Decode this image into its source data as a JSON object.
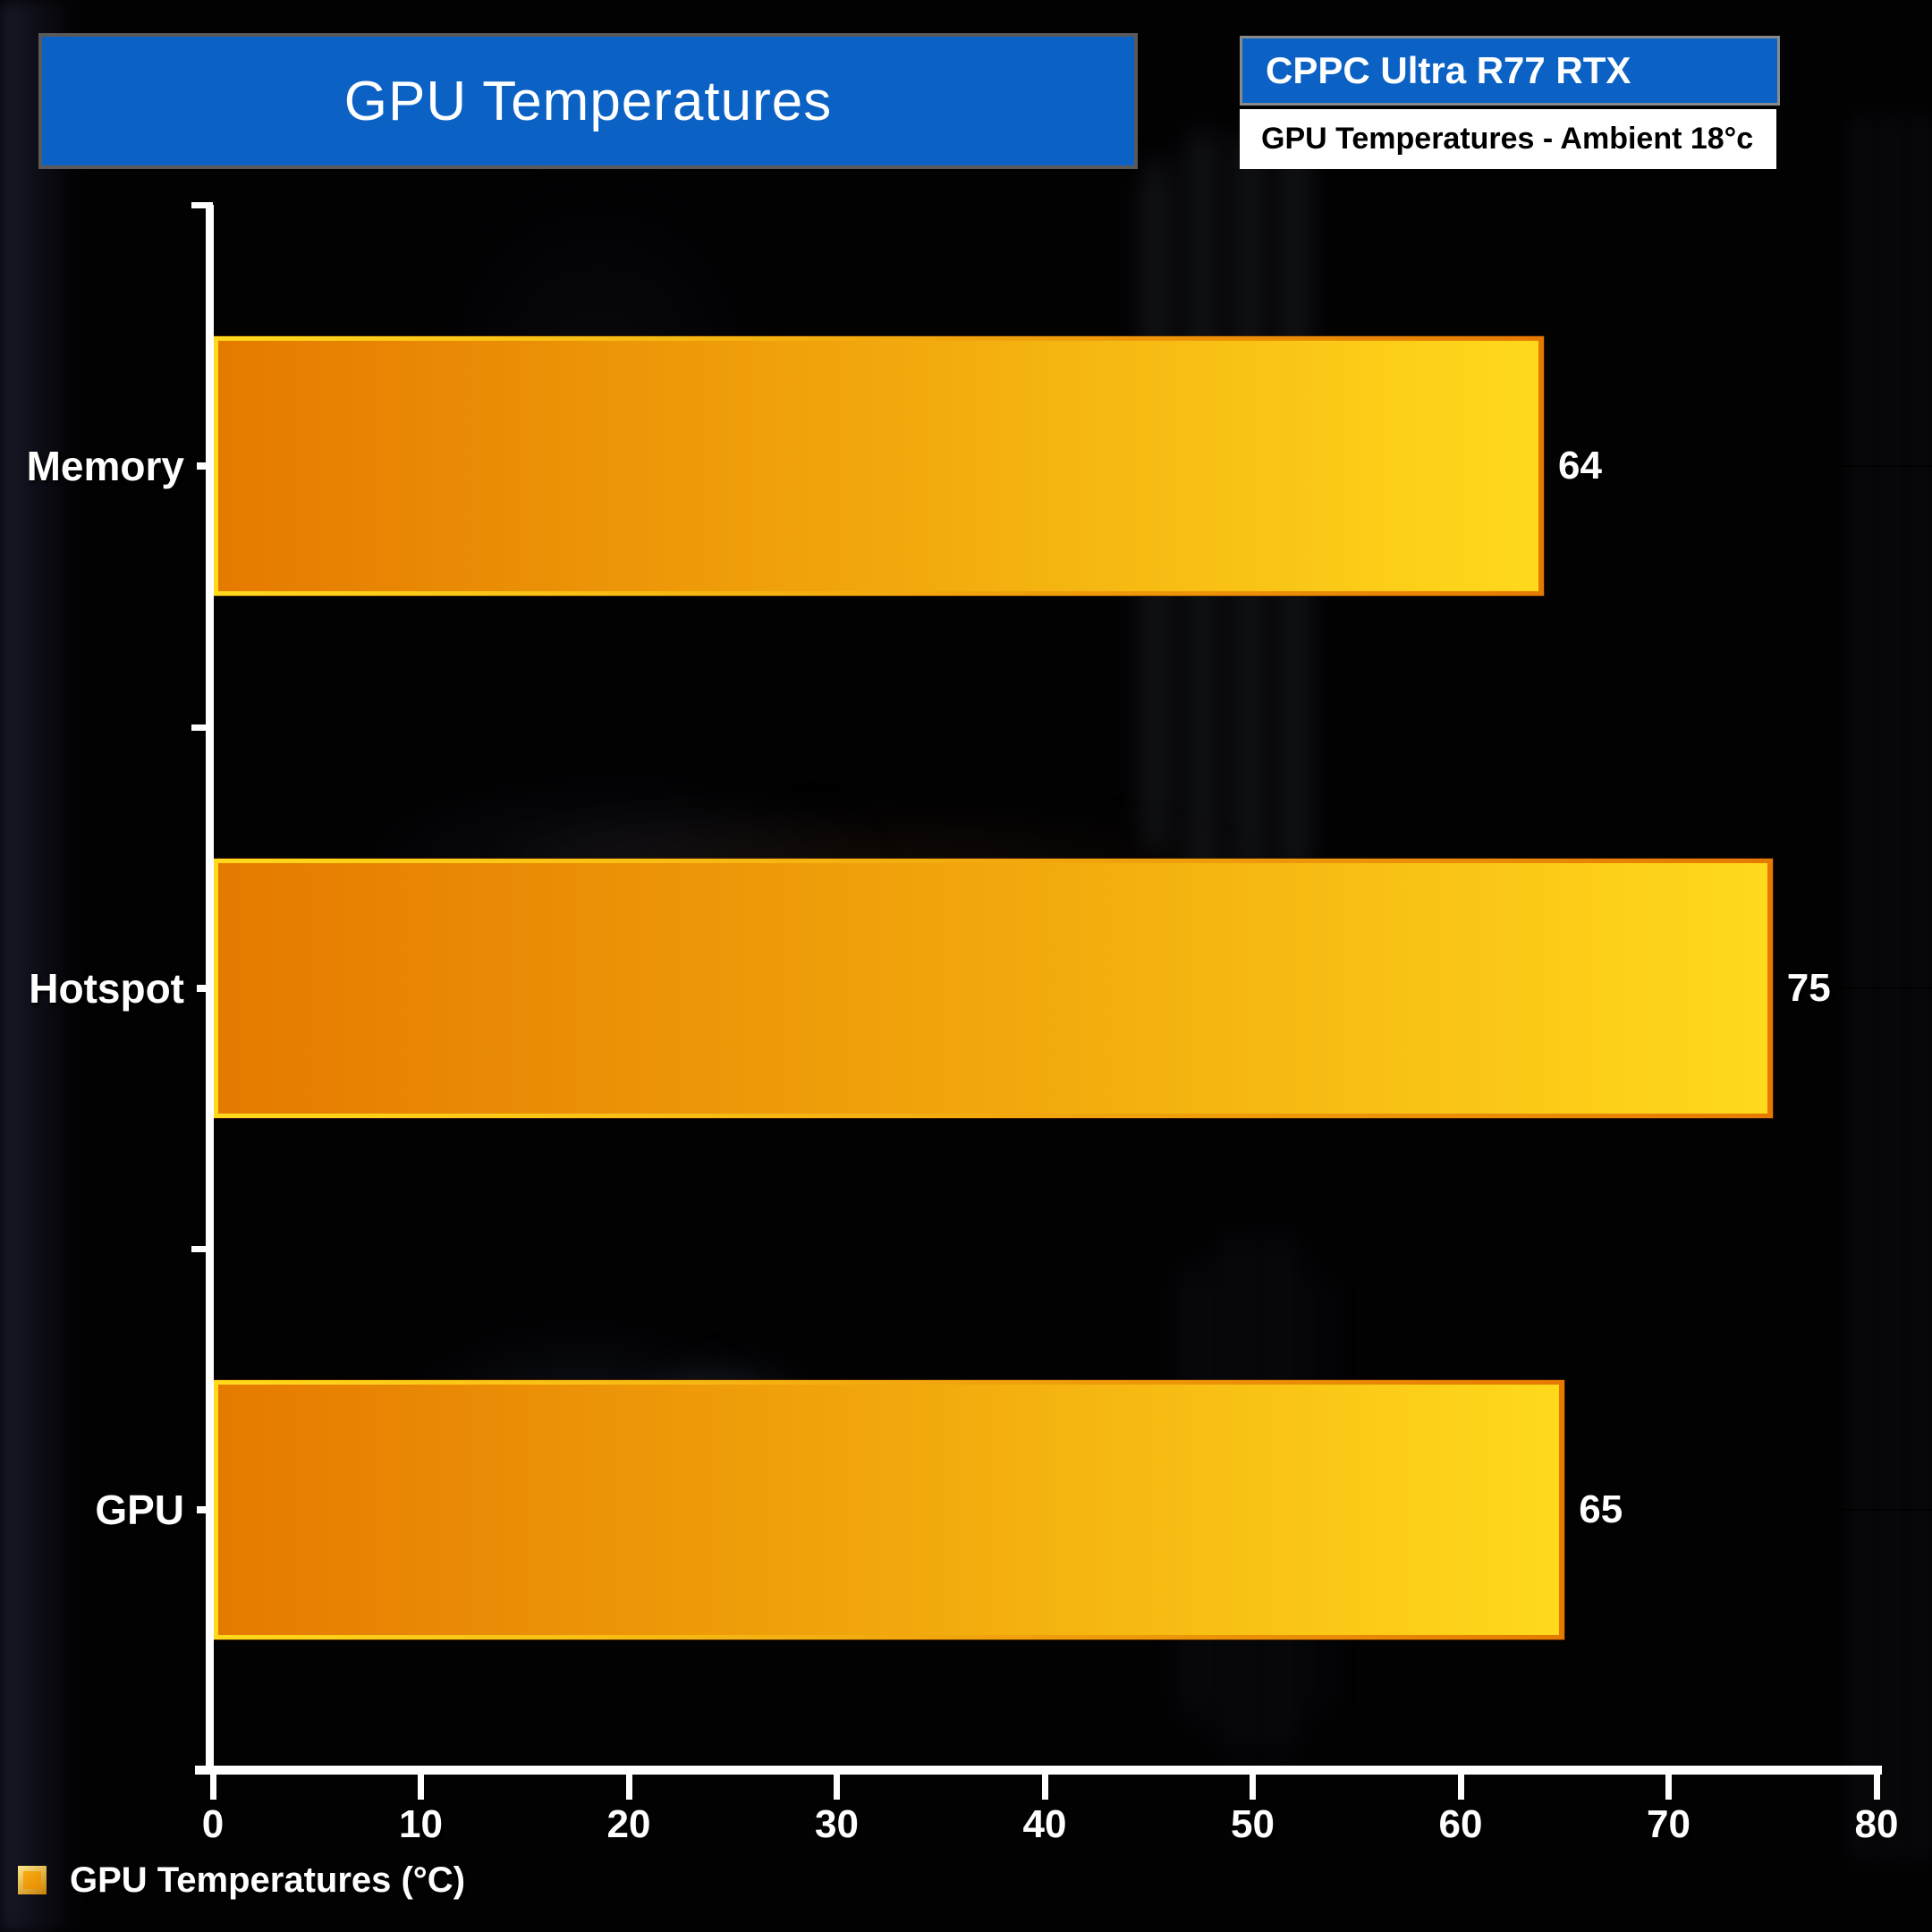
{
  "title": {
    "label": "GPU Temperatures"
  },
  "header": {
    "device": "CPPC Ultra R77 RTX",
    "subtitle": "GPU Temperatures - Ambient 18°c"
  },
  "legend": {
    "label": "GPU Temperatures (°C)",
    "swatch": "orange-gold-square"
  },
  "colors": {
    "accent_blue": "#0b62c4",
    "bar_gradient_start": "#e57a00",
    "bar_gradient_mid": "#f2a90d",
    "bar_gradient_end": "#ffd91c",
    "axis": "#ffffff",
    "value_text": "#ffffff",
    "background": "#020203"
  },
  "chart_data": {
    "type": "bar",
    "orientation": "horizontal",
    "title": "GPU Temperatures",
    "series_name": "GPU Temperatures (°C)",
    "categories": [
      "Memory",
      "Hotspot",
      "GPU"
    ],
    "values": [
      64,
      75,
      65
    ],
    "xlabel": "",
    "ylabel": "",
    "xlim": [
      0,
      80
    ],
    "xtick_step": 10,
    "grid": false,
    "legend_position": "bottom-left",
    "value_labels_shown": true
  }
}
